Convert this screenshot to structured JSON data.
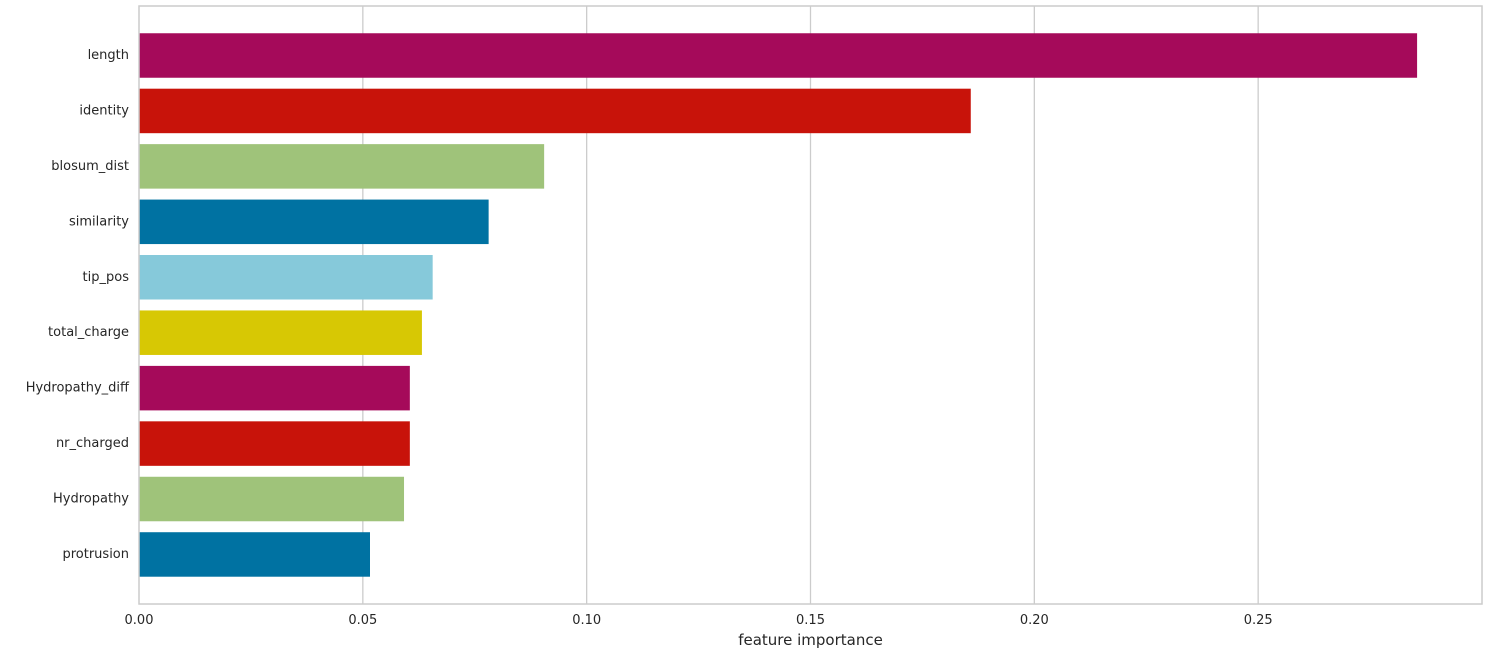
{
  "chart_data": {
    "type": "bar",
    "orientation": "horizontal",
    "title": "",
    "xlabel": "feature importance",
    "ylabel": "",
    "xlim": [
      0,
      0.3
    ],
    "x_ticks": [
      0.0,
      0.05,
      0.1,
      0.15,
      0.2,
      0.25
    ],
    "x_tick_labels": [
      "0.00",
      "0.05",
      "0.10",
      "0.15",
      "0.20",
      "0.25"
    ],
    "grid": "vertical",
    "categories": [
      "length",
      "identity",
      "blosum_dist",
      "similarity",
      "tip_pos",
      "total_charge",
      "Hydropathy_diff",
      "nr_charged",
      "Hydropathy",
      "protrusion"
    ],
    "values": [
      0.2855,
      0.1858,
      0.0905,
      0.0781,
      0.0656,
      0.0632,
      0.0605,
      0.0605,
      0.0592,
      0.0516
    ],
    "bar_colors": [
      "#A50A5A",
      "#C8130A",
      "#9FC37A",
      "#0072A2",
      "#86C9DA",
      "#D7C804",
      "#A50A5A",
      "#C8130A",
      "#9FC37A",
      "#0072A2"
    ],
    "colors": {
      "grid": "#cccccc",
      "frame": "#cccccc",
      "text": "#262626"
    }
  }
}
